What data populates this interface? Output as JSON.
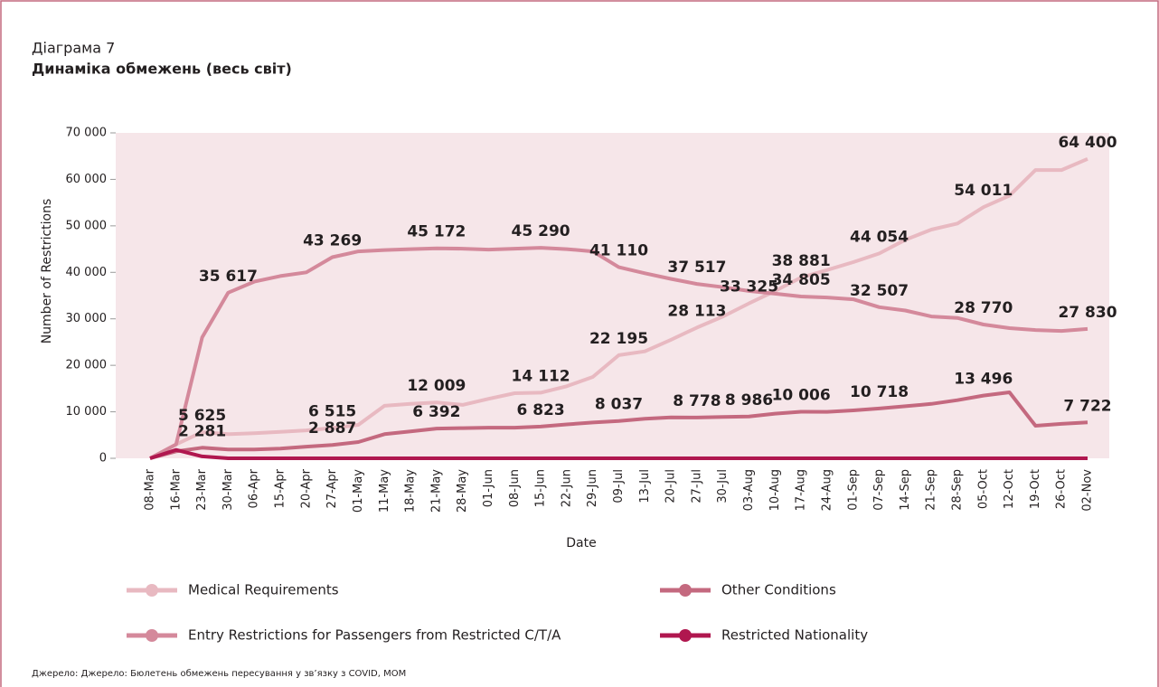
{
  "chart_data": {
    "type": "line",
    "label": "Діаграма 7",
    "title": "Динаміка обмежень (весь світ)",
    "source": "Джерело: Джерело: Бюлетень обмежень пересування у зв’язку з COVID, МОМ",
    "x_label": "Date",
    "y_label": "Number of Restrictions",
    "categories": [
      "08-Mar",
      "16-Mar",
      "23-Mar",
      "30-Mar",
      "06-Apr",
      "15-Apr",
      "20-Apr",
      "27-Apr",
      "01-May",
      "11-May",
      "18-May",
      "21-May",
      "28-May",
      "01-Jun",
      "08-Jun",
      "15-Jun",
      "22-Jun",
      "29-Jun",
      "09-Jul",
      "13-Jul",
      "20-Jul",
      "27-Jul",
      "30-Jul",
      "03-Aug",
      "10-Aug",
      "17-Aug",
      "24-Aug",
      "01-Sep",
      "07-Sep",
      "14-Sep",
      "21-Sep",
      "28-Sep",
      "05-Oct",
      "12-Oct",
      "19-Oct",
      "26-Oct",
      "02-Nov"
    ],
    "ylim": [
      0,
      70000
    ],
    "yticks": [
      0,
      {
        "value": 10000,
        "label": "10 000"
      },
      {
        "value": 20000,
        "label": "20 000"
      },
      {
        "value": 30000,
        "label": "30 000"
      },
      {
        "value": 40000,
        "label": "40 000"
      },
      {
        "value": 50000,
        "label": "50 000"
      },
      {
        "value": 60000,
        "label": "60 000"
      },
      {
        "value": 70000,
        "label": "70 000"
      }
    ],
    "series": [
      {
        "name": "Medical Requirements",
        "color": "#e8b9c1",
        "values": [
          0,
          3000,
          5625,
          5200,
          5400,
          5700,
          6000,
          6515,
          7200,
          11300,
          11700,
          12009,
          11500,
          12800,
          14000,
          14112,
          15500,
          17500,
          22195,
          23000,
          25500,
          28113,
          30500,
          33325,
          36000,
          38881,
          40500,
          42200,
          44054,
          47000,
          49200,
          50500,
          54011,
          56500,
          62000,
          62000,
          64400
        ],
        "value_labels": [
          null,
          null,
          "5 625",
          null,
          null,
          null,
          null,
          "6 515",
          null,
          null,
          null,
          "12 009",
          null,
          null,
          null,
          "14 112",
          null,
          null,
          "22 195",
          null,
          null,
          "28 113",
          null,
          "33 325",
          null,
          "38 881",
          null,
          null,
          "44 054",
          null,
          null,
          null,
          "54 011",
          null,
          null,
          null,
          "64 400"
        ]
      },
      {
        "name": "Other Conditions",
        "color": "#c4697f",
        "values": [
          0,
          1500,
          2281,
          1900,
          1900,
          2100,
          2500,
          2887,
          3500,
          5200,
          5800,
          6392,
          6500,
          6600,
          6600,
          6823,
          7300,
          7700,
          8037,
          8500,
          8800,
          8778,
          8900,
          8986,
          9600,
          10006,
          10000,
          10300,
          10718,
          11200,
          11700,
          12500,
          13496,
          14200,
          7000,
          7400,
          7722
        ],
        "value_labels": [
          null,
          null,
          "2 281",
          null,
          null,
          null,
          null,
          "2 887",
          null,
          null,
          null,
          "6 392",
          null,
          null,
          null,
          "6 823",
          null,
          null,
          "8 037",
          null,
          null,
          "8 778",
          null,
          "8 986",
          null,
          "10 006",
          null,
          null,
          "10 718",
          null,
          null,
          null,
          "13 496",
          null,
          null,
          null,
          "7 722"
        ]
      },
      {
        "name": "Entry Restrictions for Passengers from Restricted C/T/A",
        "color": "#d4899b",
        "values": [
          0,
          3000,
          26000,
          35617,
          38000,
          39200,
          40000,
          43269,
          44500,
          44800,
          45000,
          45172,
          45100,
          44900,
          45100,
          45290,
          45000,
          44500,
          41110,
          39800,
          38600,
          37517,
          36800,
          36000,
          35400,
          34805,
          34600,
          34200,
          32507,
          31800,
          30500,
          30200,
          28770,
          28000,
          27600,
          27400,
          27830
        ],
        "value_labels": [
          null,
          null,
          null,
          "35 617",
          null,
          null,
          null,
          "43 269",
          null,
          null,
          null,
          "45 172",
          null,
          null,
          null,
          "45 290",
          null,
          null,
          "41 110",
          null,
          null,
          "37 517",
          null,
          null,
          null,
          "34 805",
          null,
          null,
          "32 507",
          null,
          null,
          null,
          "28 770",
          null,
          null,
          null,
          "27 830"
        ]
      },
      {
        "name": "Restricted Nationality",
        "color": "#b0174f",
        "values": [
          0,
          1800,
          400,
          0,
          0,
          0,
          0,
          0,
          0,
          0,
          0,
          0,
          0,
          0,
          0,
          0,
          0,
          0,
          0,
          0,
          0,
          0,
          0,
          0,
          0,
          0,
          0,
          0,
          0,
          0,
          0,
          0,
          0,
          0,
          0,
          0,
          0
        ]
      }
    ]
  }
}
